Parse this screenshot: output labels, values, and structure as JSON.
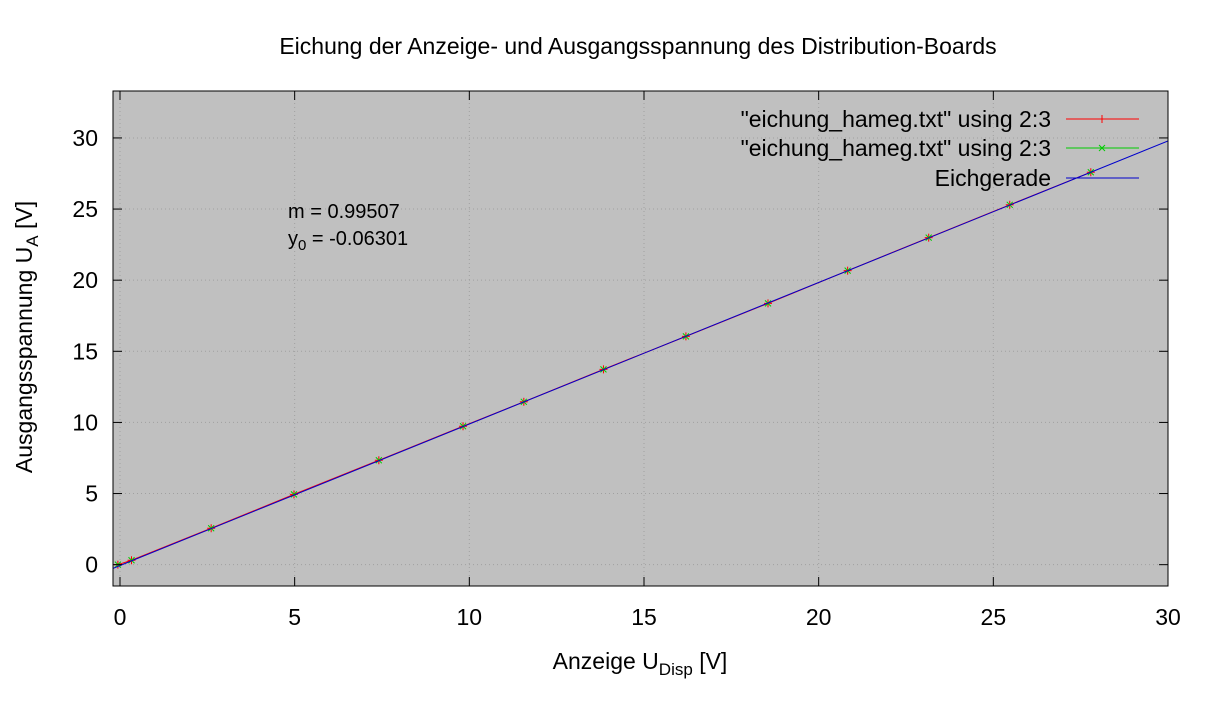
{
  "chart_data": {
    "type": "scatter",
    "title": "Eichung der Anzeige- und Ausgangsspannung des Distribution-Boards",
    "xlabel": {
      "base": "Anzeige U",
      "sub": "Disp",
      "unit": " [V]"
    },
    "ylabel": {
      "base": "Ausgangsspannung U",
      "sub": "A",
      "unit": " [V]"
    },
    "xlim": [
      -0.2,
      30
    ],
    "ylim": [
      -1.5,
      33.3
    ],
    "xticks": [
      0,
      5,
      10,
      15,
      20,
      25,
      30
    ],
    "yticks": [
      0,
      5,
      10,
      15,
      20,
      25,
      30
    ],
    "grid": true,
    "legend_position": "top-right",
    "background_color": "#c0c0c0",
    "annotation": {
      "line1": "m = 0.99507",
      "line2_base": "y",
      "line2_sub": "0",
      "line2_rest": " = -0.06301"
    },
    "series": [
      {
        "name": "\"eichung_hameg.txt\" using 2:3",
        "style": "linespoints",
        "color": "#ff0000",
        "marker": "plus",
        "x": [
          -0.06,
          0.33,
          2.61,
          4.98,
          7.41,
          9.82,
          11.56,
          13.84,
          16.2,
          18.55,
          20.83,
          23.15,
          25.47,
          27.79
        ],
        "y": [
          0.0,
          0.31,
          2.56,
          4.94,
          7.34,
          9.73,
          11.45,
          13.73,
          16.05,
          18.37,
          20.67,
          22.99,
          25.3,
          27.59
        ]
      },
      {
        "name": "\"eichung_hameg.txt\" using 2:3",
        "style": "points",
        "color": "#00cc00",
        "marker": "cross",
        "x": [
          -0.06,
          0.33,
          2.61,
          4.98,
          7.41,
          9.82,
          11.56,
          13.84,
          16.2,
          18.55,
          20.83,
          23.15,
          25.47,
          27.79
        ],
        "y": [
          0.0,
          0.31,
          2.56,
          4.94,
          7.34,
          9.73,
          11.45,
          13.73,
          16.05,
          18.37,
          20.67,
          22.99,
          25.3,
          27.59
        ]
      },
      {
        "name": "Eichgerade",
        "style": "line",
        "color": "#0000cc",
        "slope": 0.99507,
        "intercept": -0.06301
      }
    ]
  }
}
